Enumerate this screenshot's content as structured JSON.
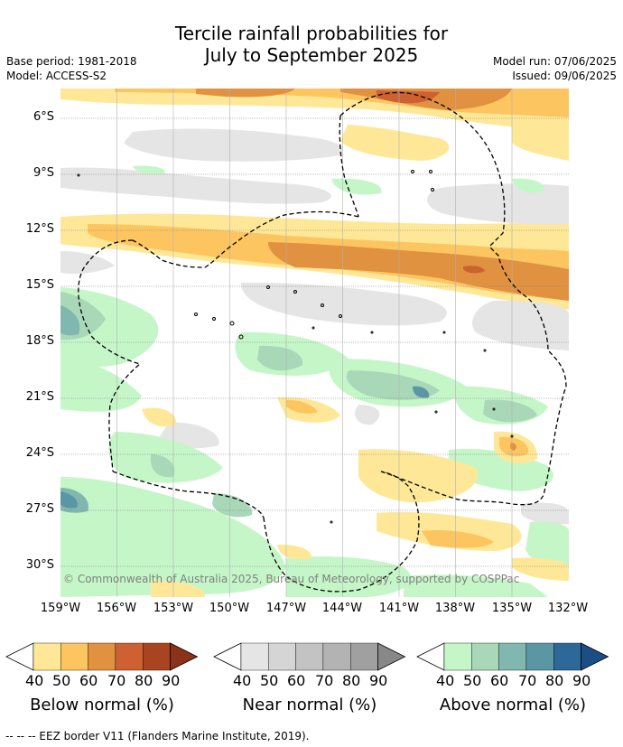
{
  "title": {
    "line1": "Tercile rainfall probabilities for",
    "line2": "July to September 2025"
  },
  "meta": {
    "base_period": "Base period: 1981-2018",
    "model": "Model: ACCESS-S2",
    "model_run": "Model run: 07/06/2025",
    "issued": "Issued: 09/06/2025"
  },
  "map": {
    "lat_labels": [
      "6°S",
      "9°S",
      "12°S",
      "15°S",
      "18°S",
      "21°S",
      "24°S",
      "27°S",
      "30°S"
    ],
    "lon_labels": [
      "159°W",
      "156°W",
      "153°W",
      "150°W",
      "147°W",
      "144°W",
      "141°W",
      "138°W",
      "135°W",
      "132°W"
    ],
    "copyright": "© Commonwealth of Australia 2025, Bureau of Meteorology, supported by COSPPac"
  },
  "legends": [
    {
      "title": "Below normal (%)",
      "ticks": [
        "40",
        "50",
        "60",
        "70",
        "80",
        "90"
      ],
      "colors": [
        "#ffffff",
        "#fee898",
        "#fdc560",
        "#e19240",
        "#cd6132",
        "#a8441f",
        "#8b3219"
      ]
    },
    {
      "title": "Near normal (%)",
      "ticks": [
        "40",
        "50",
        "60",
        "70",
        "80",
        "90"
      ],
      "colors": [
        "#ffffff",
        "#e5e5e5",
        "#d5d5d5",
        "#c3c3c3",
        "#b3b3b3",
        "#a0a0a0",
        "#888888"
      ]
    },
    {
      "title": "Above normal (%)",
      "ticks": [
        "40",
        "50",
        "60",
        "70",
        "80",
        "90"
      ],
      "colors": [
        "#ffffff",
        "#c5f6c8",
        "#a8d8b8",
        "#80b8b0",
        "#5b96a5",
        "#2e6898",
        "#1c4e86"
      ]
    }
  ],
  "eez_note": "-- -- -- EEZ border V11 (Flanders Marine Institute, 2019)."
}
